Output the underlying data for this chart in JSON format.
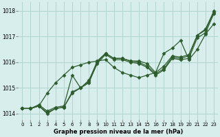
{
  "title": "Graphe pression niveau de la mer (hPa)",
  "bg_color": "#d8eeed",
  "grid_color": "#b0d4d0",
  "line_color": "#2d5c2d",
  "xlim": [
    -0.5,
    23.5
  ],
  "ylim": [
    1013.75,
    1018.35
  ],
  "yticks": [
    1014,
    1015,
    1016,
    1017,
    1018
  ],
  "xticks": [
    0,
    1,
    2,
    3,
    4,
    5,
    6,
    7,
    8,
    9,
    10,
    11,
    12,
    13,
    14,
    15,
    16,
    17,
    18,
    19,
    20,
    21,
    22,
    23
  ],
  "series": [
    [
      1014.2,
      1014.2,
      1014.3,
      1014.0,
      1014.2,
      1014.25,
      1014.85,
      1015.0,
      1015.25,
      1016.05,
      1016.35,
      1016.15,
      1016.15,
      1016.05,
      1016.05,
      1015.95,
      1015.6,
      1015.85,
      1016.25,
      1016.2,
      1016.3,
      1017.05,
      1017.3,
      1018.0
    ],
    [
      1014.2,
      1014.2,
      1014.3,
      1014.8,
      1015.2,
      1015.5,
      1015.8,
      1015.9,
      1016.0,
      1016.05,
      1016.1,
      1015.8,
      1015.6,
      1015.5,
      1015.4,
      1015.5,
      1015.6,
      1016.35,
      1016.55,
      1016.85,
      1016.1,
      1016.5,
      1017.1,
      1017.5
    ],
    [
      1014.2,
      1014.2,
      1014.3,
      1014.05,
      1014.2,
      1014.25,
      1014.8,
      1015.0,
      1015.2,
      1015.95,
      1016.3,
      1016.1,
      1016.1,
      1016.0,
      1015.95,
      1015.8,
      1015.5,
      1015.7,
      1016.15,
      1016.1,
      1016.15,
      1016.95,
      1017.15,
      1017.9
    ],
    [
      1014.2,
      1014.2,
      1014.35,
      1014.1,
      1014.25,
      1014.3,
      1015.5,
      1015.0,
      1015.3,
      1016.0,
      1016.35,
      1016.15,
      1016.15,
      1016.05,
      1016.0,
      1015.85,
      1015.55,
      1015.75,
      1016.2,
      1016.15,
      1016.25,
      1017.05,
      1017.25,
      1017.95
    ]
  ],
  "marker_style": "D",
  "marker_size": 2.5,
  "linewidth": 0.9
}
